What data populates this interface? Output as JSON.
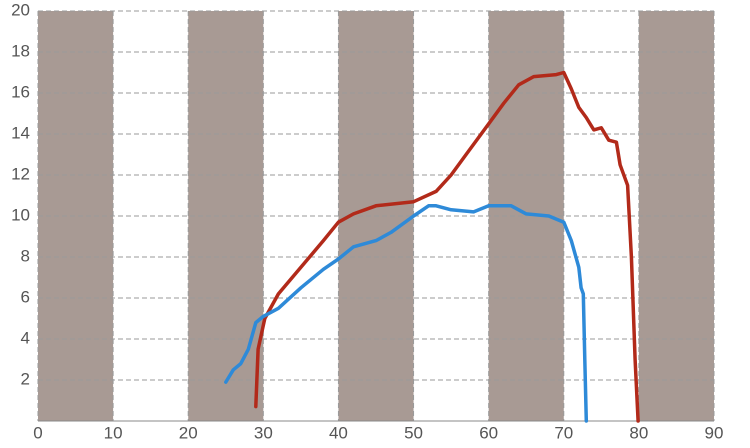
{
  "chart_data": {
    "type": "line",
    "series": [
      {
        "color": "#b22a1a",
        "x": [
          29.0,
          29.3,
          30.2,
          32,
          35,
          38,
          40,
          42,
          45,
          50,
          53,
          55,
          57,
          60,
          62,
          64,
          66,
          69,
          70,
          71,
          72,
          73,
          74,
          75,
          76,
          77,
          77.5,
          78.5,
          79,
          79.5,
          79.9
        ],
        "values": [
          0.7,
          3.5,
          5.0,
          6.2,
          7.5,
          8.8,
          9.7,
          10.1,
          10.5,
          10.7,
          11.2,
          12.0,
          13.0,
          14.5,
          15.5,
          16.4,
          16.8,
          16.9,
          17.0,
          16.2,
          15.3,
          14.8,
          14.2,
          14.3,
          13.7,
          13.6,
          12.5,
          11.5,
          8.0,
          3.0,
          0.0
        ]
      },
      {
        "color": "#2e8ad8",
        "x": [
          25.0,
          26,
          27,
          28,
          29,
          30,
          32,
          35,
          38,
          40,
          42,
          45,
          47,
          50,
          52,
          53,
          55,
          58,
          60,
          62,
          63,
          65,
          68,
          70,
          71,
          72,
          72.3,
          72.6,
          72.8,
          73.0
        ],
        "values": [
          1.9,
          2.5,
          2.8,
          3.5,
          4.8,
          5.1,
          5.5,
          6.5,
          7.4,
          7.9,
          8.5,
          8.8,
          9.2,
          10.0,
          10.5,
          10.5,
          10.3,
          10.2,
          10.5,
          10.5,
          10.5,
          10.1,
          10.0,
          9.7,
          8.8,
          7.5,
          6.5,
          6.2,
          3.0,
          0.0
        ]
      }
    ],
    "xlim": [
      0,
      90
    ],
    "xticks": [
      0,
      10,
      20,
      30,
      40,
      50,
      60,
      70,
      80,
      90
    ],
    "ylim": [
      0,
      20
    ],
    "yticks": [
      2,
      4,
      6,
      8,
      10,
      12,
      14,
      16,
      18,
      20
    ],
    "grid": true,
    "band_color": "#a89a94"
  }
}
